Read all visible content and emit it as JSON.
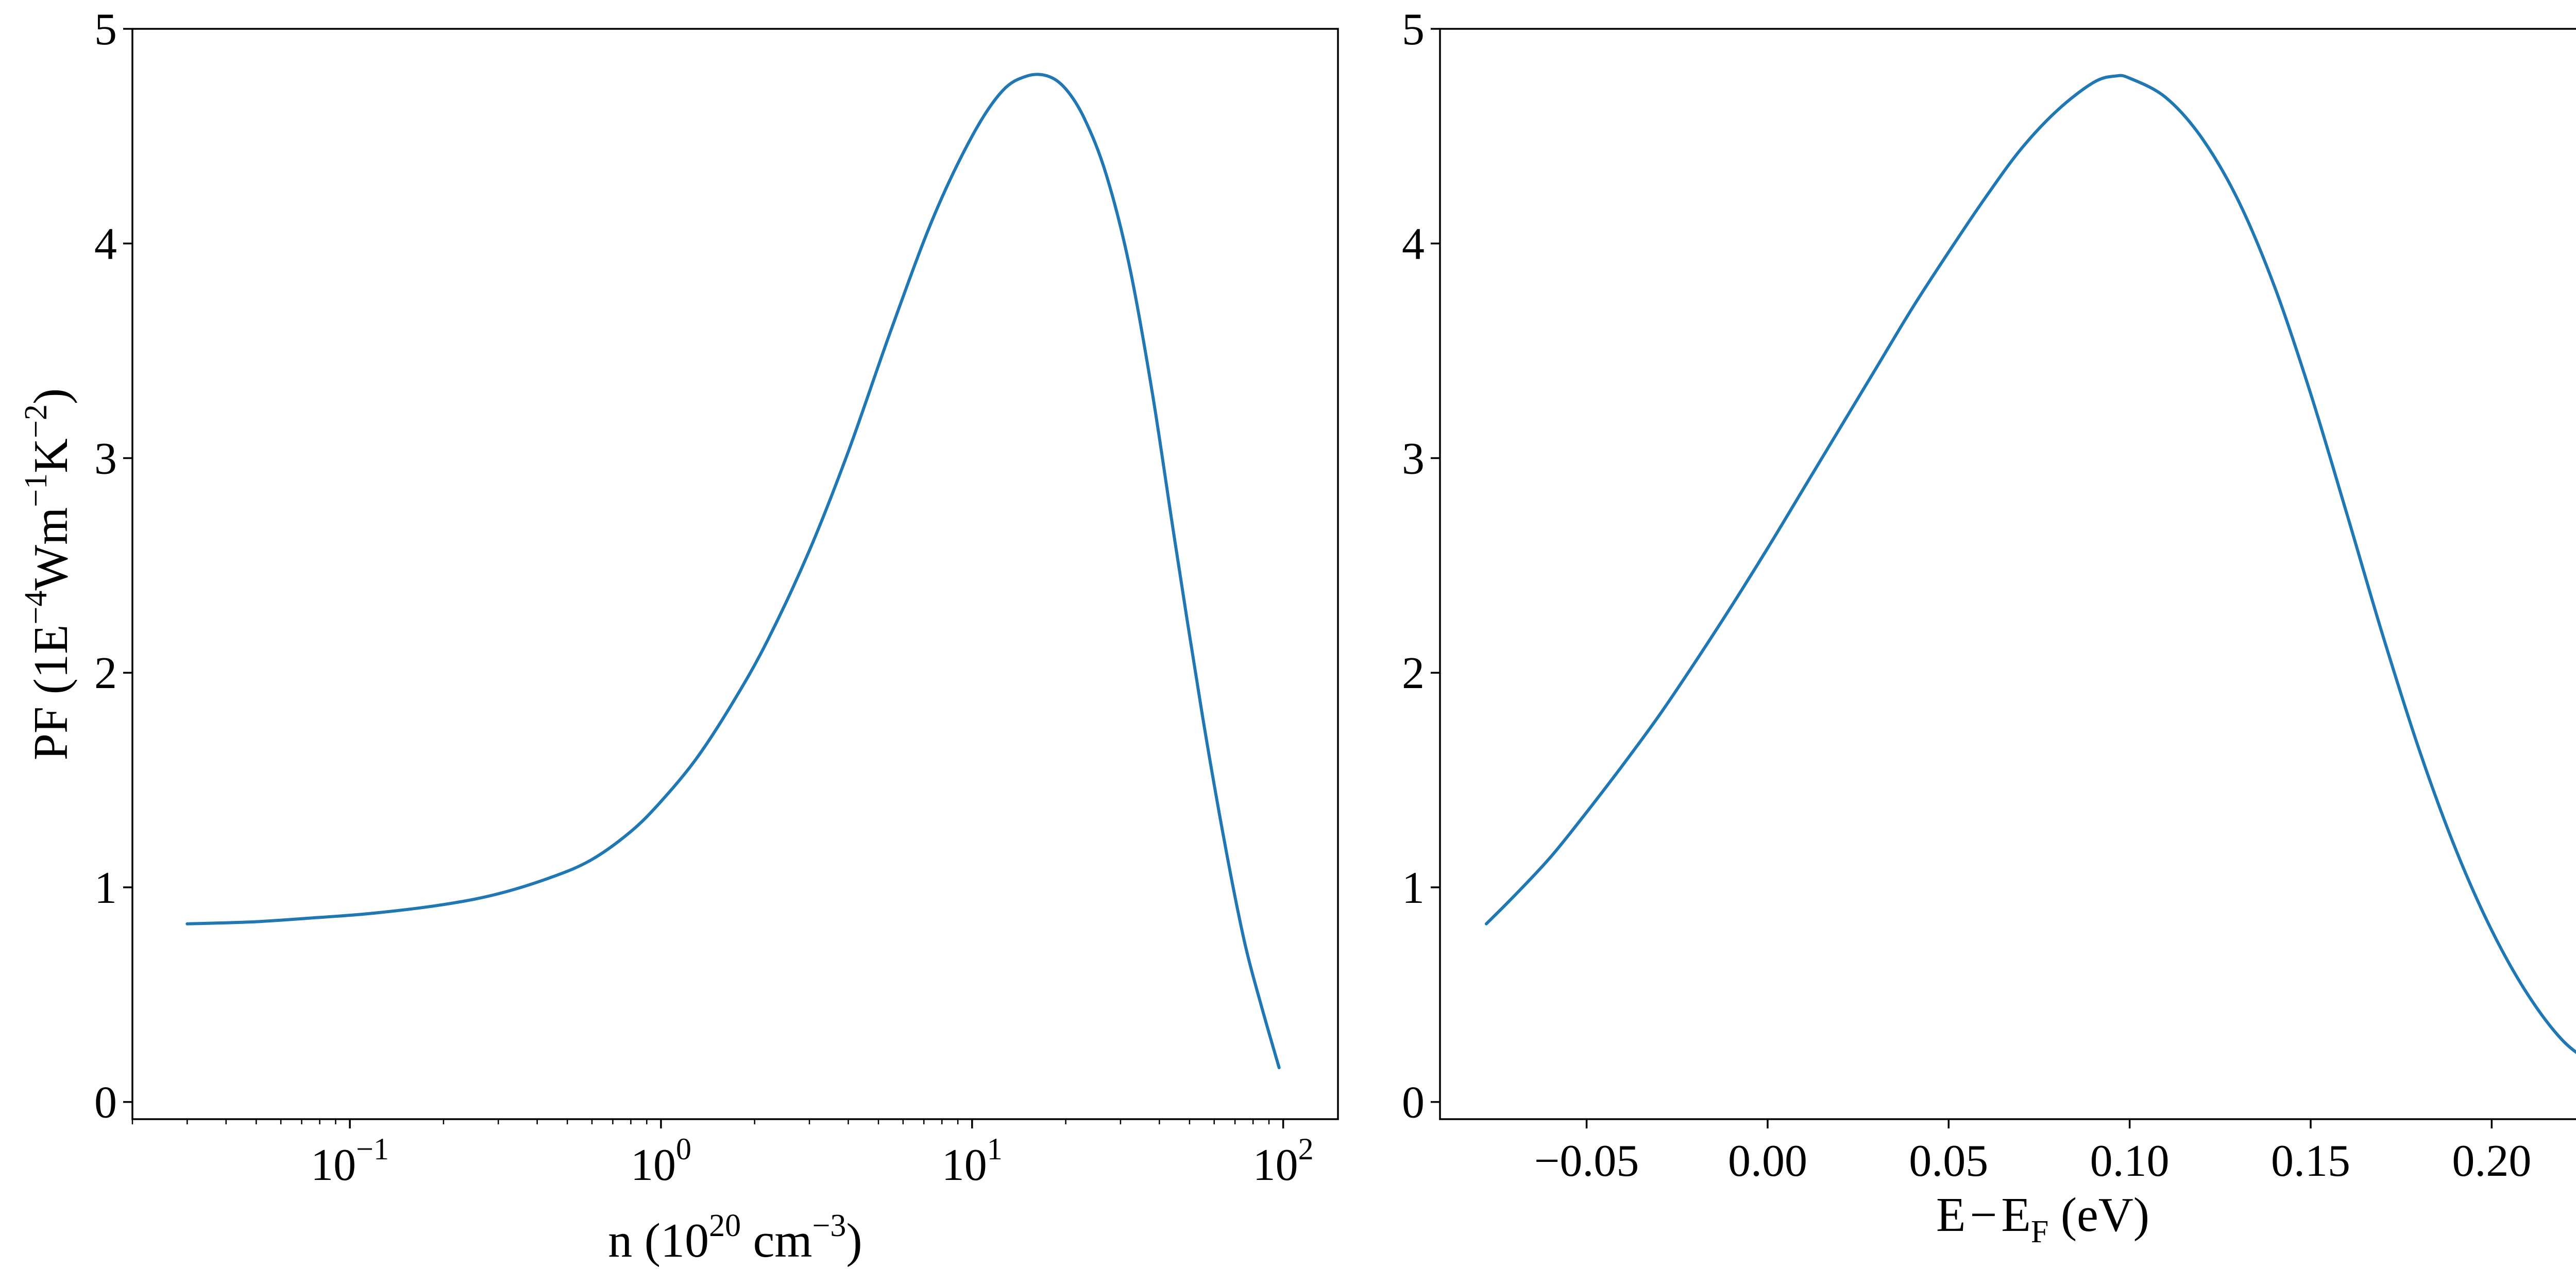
{
  "colors": {
    "line": "#1f77b4",
    "axes": "#000000",
    "background": "#ffffff"
  },
  "chart_data": [
    {
      "type": "line",
      "xscale": "log",
      "xlim": [
        0.02,
        150
      ],
      "ylim": [
        -0.08,
        5
      ],
      "grid": false,
      "xlabel": {
        "main": "n (10",
        "sup": "20",
        "after": " cm",
        "sup2": "−3",
        "end": ")"
      },
      "ylabel": {
        "p1": "PF (1E",
        "s1": "−4",
        "p2": "Wm",
        "s2": "−1",
        "p3": "K",
        "s3": "−2",
        "p4": ")"
      },
      "x_ticks": [
        {
          "value": 0.1,
          "base": "10",
          "exp": "−1"
        },
        {
          "value": 1,
          "base": "10",
          "exp": "0"
        },
        {
          "value": 10,
          "base": "10",
          "exp": "1"
        },
        {
          "value": 100,
          "base": "10",
          "exp": "2"
        }
      ],
      "y_ticks": [
        {
          "value": 0,
          "label": "0"
        },
        {
          "value": 1,
          "label": "1"
        },
        {
          "value": 2,
          "label": "2"
        },
        {
          "value": 3,
          "label": "3"
        },
        {
          "value": 4,
          "label": "4"
        },
        {
          "value": 5,
          "label": "5"
        }
      ],
      "series": [
        {
          "x": [
            0.03,
            0.05,
            0.08,
            0.12,
            0.2,
            0.3,
            0.45,
            0.6,
            0.8,
            1.0,
            1.3,
            1.7,
            2.2,
            3.0,
            4.0,
            5.5,
            7.5,
            10.0,
            12.5,
            15.0,
            17.5,
            20.0,
            23.0,
            27.0,
            32.0,
            38.0,
            45.0,
            55.0,
            65.0,
            75.0,
            85.0,
            97.0
          ],
          "y": [
            0.83,
            0.84,
            0.86,
            0.88,
            0.92,
            0.97,
            1.05,
            1.13,
            1.26,
            1.4,
            1.6,
            1.86,
            2.15,
            2.57,
            3.03,
            3.6,
            4.12,
            4.5,
            4.71,
            4.78,
            4.78,
            4.72,
            4.58,
            4.32,
            3.9,
            3.3,
            2.6,
            1.8,
            1.2,
            0.75,
            0.45,
            0.16
          ]
        }
      ]
    },
    {
      "type": "line",
      "xscale": "linear",
      "xlim": [
        -0.0905,
        0.2425
      ],
      "ylim": [
        -0.08,
        5
      ],
      "grid": false,
      "xlabel": {
        "main": "E",
        "minus": "−",
        "sub_main": "E",
        "sub": "F",
        "end": " (eV)"
      },
      "x_ticks": [
        {
          "value": -0.05,
          "label": "−0.05"
        },
        {
          "value": 0.0,
          "label": "0.00"
        },
        {
          "value": 0.05,
          "label": "0.05"
        },
        {
          "value": 0.1,
          "label": "0.10"
        },
        {
          "value": 0.15,
          "label": "0.15"
        },
        {
          "value": 0.2,
          "label": "0.20"
        }
      ],
      "y_ticks": [
        {
          "value": 0,
          "label": "0"
        },
        {
          "value": 1,
          "label": "1"
        },
        {
          "value": 2,
          "label": "2"
        },
        {
          "value": 3,
          "label": "3"
        },
        {
          "value": 4,
          "label": "4"
        },
        {
          "value": 5,
          "label": "5"
        }
      ],
      "series": [
        {
          "x": [
            -0.0777,
            -0.07,
            -0.06,
            -0.05,
            -0.04,
            -0.03,
            -0.02,
            -0.01,
            0.0,
            0.01,
            0.02,
            0.03,
            0.04,
            0.05,
            0.06,
            0.07,
            0.08,
            0.09,
            0.096,
            0.1,
            0.11,
            0.12,
            0.13,
            0.14,
            0.15,
            0.16,
            0.17,
            0.18,
            0.19,
            0.2,
            0.21,
            0.22,
            0.2297
          ],
          "y": [
            0.83,
            0.96,
            1.14,
            1.35,
            1.57,
            1.8,
            2.05,
            2.31,
            2.58,
            2.86,
            3.14,
            3.42,
            3.7,
            3.96,
            4.21,
            4.44,
            4.62,
            4.75,
            4.78,
            4.77,
            4.68,
            4.49,
            4.2,
            3.8,
            3.3,
            2.74,
            2.17,
            1.64,
            1.18,
            0.8,
            0.5,
            0.28,
            0.16
          ]
        }
      ]
    }
  ]
}
